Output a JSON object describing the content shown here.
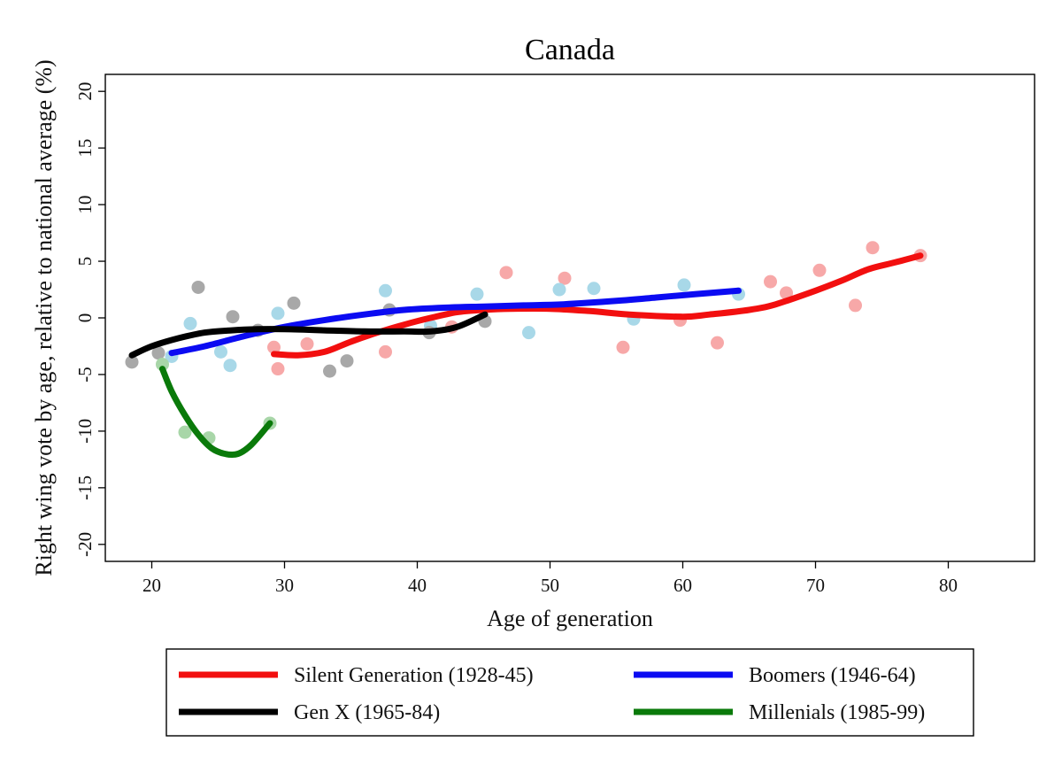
{
  "chart_data": {
    "type": "scatter",
    "title": "Canada",
    "xlabel": "Age of generation",
    "ylabel": "Right wing vote by age, relative to national average (%)",
    "xlim": [
      16.5,
      86.5
    ],
    "ylim": [
      -21.5,
      21.5
    ],
    "xticks": [
      20,
      30,
      40,
      50,
      60,
      70,
      80
    ],
    "yticks": [
      -20,
      -15,
      -10,
      -5,
      0,
      5,
      10,
      15,
      20
    ],
    "grid": false,
    "legend_position": "bottom",
    "series": [
      {
        "name": "Silent Generation (1928-45)",
        "color": "#f20f0f",
        "point_color": "#f7a8a8",
        "points": [
          [
            29.2,
            -2.6
          ],
          [
            29.5,
            -4.5
          ],
          [
            31.7,
            -2.3
          ],
          [
            37.6,
            -3.0
          ],
          [
            42.6,
            -0.8
          ],
          [
            46.7,
            4.0
          ],
          [
            51.1,
            3.5
          ],
          [
            55.5,
            -2.6
          ],
          [
            59.8,
            -0.2
          ],
          [
            62.6,
            -2.2
          ],
          [
            66.6,
            3.2
          ],
          [
            67.8,
            2.2
          ],
          [
            70.3,
            4.2
          ],
          [
            73.0,
            1.1
          ],
          [
            74.3,
            6.2
          ],
          [
            77.9,
            5.5
          ]
        ],
        "fit": [
          [
            29.2,
            -3.2
          ],
          [
            31,
            -3.3
          ],
          [
            33,
            -3.0
          ],
          [
            35,
            -2.1
          ],
          [
            37,
            -1.3
          ],
          [
            39,
            -0.6
          ],
          [
            41,
            0.0
          ],
          [
            43,
            0.5
          ],
          [
            45,
            0.7
          ],
          [
            47,
            0.8
          ],
          [
            50,
            0.8
          ],
          [
            53,
            0.6
          ],
          [
            56,
            0.3
          ],
          [
            60,
            0.1
          ],
          [
            62,
            0.3
          ],
          [
            65,
            0.7
          ],
          [
            67,
            1.2
          ],
          [
            70,
            2.4
          ],
          [
            72,
            3.3
          ],
          [
            74,
            4.3
          ],
          [
            76,
            4.9
          ],
          [
            77.9,
            5.5
          ]
        ]
      },
      {
        "name": "Boomers (1946-64)",
        "color": "#0b0bf2",
        "point_color": "#a8d8e8",
        "points": [
          [
            21.5,
            -3.4
          ],
          [
            22.9,
            -0.5
          ],
          [
            25.2,
            -3.0
          ],
          [
            25.9,
            -4.2
          ],
          [
            29.5,
            0.4
          ],
          [
            37.6,
            2.4
          ],
          [
            41.0,
            -0.7
          ],
          [
            44.5,
            2.1
          ],
          [
            48.4,
            -1.3
          ],
          [
            50.7,
            2.5
          ],
          [
            53.3,
            2.6
          ],
          [
            56.3,
            -0.1
          ],
          [
            60.1,
            2.9
          ],
          [
            64.2,
            2.1
          ]
        ],
        "fit": [
          [
            21.5,
            -3.1
          ],
          [
            24,
            -2.5
          ],
          [
            27,
            -1.6
          ],
          [
            30,
            -0.8
          ],
          [
            33,
            -0.2
          ],
          [
            36,
            0.3
          ],
          [
            39,
            0.7
          ],
          [
            42,
            0.9
          ],
          [
            45,
            1.0
          ],
          [
            48,
            1.1
          ],
          [
            51,
            1.2
          ],
          [
            55,
            1.5
          ],
          [
            58,
            1.8
          ],
          [
            61,
            2.1
          ],
          [
            64.2,
            2.4
          ]
        ]
      },
      {
        "name": "Gen X (1965-84)",
        "color": "#000000",
        "point_color": "#a8a8a8",
        "points": [
          [
            18.5,
            -3.9
          ],
          [
            20.5,
            -3.1
          ],
          [
            23.5,
            2.7
          ],
          [
            26.1,
            0.1
          ],
          [
            28.0,
            -1.1
          ],
          [
            30.7,
            1.3
          ],
          [
            33.4,
            -4.7
          ],
          [
            34.7,
            -3.8
          ],
          [
            37.9,
            0.7
          ],
          [
            40.9,
            -1.3
          ],
          [
            45.1,
            -0.3
          ]
        ],
        "fit": [
          [
            18.5,
            -3.3
          ],
          [
            20,
            -2.5
          ],
          [
            22,
            -1.8
          ],
          [
            24,
            -1.3
          ],
          [
            26,
            -1.1
          ],
          [
            28,
            -1.0
          ],
          [
            30,
            -1.0
          ],
          [
            33,
            -1.1
          ],
          [
            36,
            -1.2
          ],
          [
            39,
            -1.2
          ],
          [
            41,
            -1.2
          ],
          [
            43,
            -0.8
          ],
          [
            45.1,
            0.3
          ]
        ]
      },
      {
        "name": "Millenials (1985-99)",
        "color": "#0a7a0a",
        "point_color": "#a8d6a8",
        "points": [
          [
            20.8,
            -4.1
          ],
          [
            22.5,
            -10.1
          ],
          [
            24.3,
            -10.6
          ],
          [
            28.9,
            -9.3
          ]
        ],
        "fit": [
          [
            20.8,
            -4.5
          ],
          [
            21.5,
            -6.5
          ],
          [
            22.5,
            -8.6
          ],
          [
            23.5,
            -10.3
          ],
          [
            24.5,
            -11.5
          ],
          [
            25.5,
            -12.0
          ],
          [
            26.5,
            -12.0
          ],
          [
            27.5,
            -11.2
          ],
          [
            28.9,
            -9.3
          ]
        ]
      }
    ]
  }
}
